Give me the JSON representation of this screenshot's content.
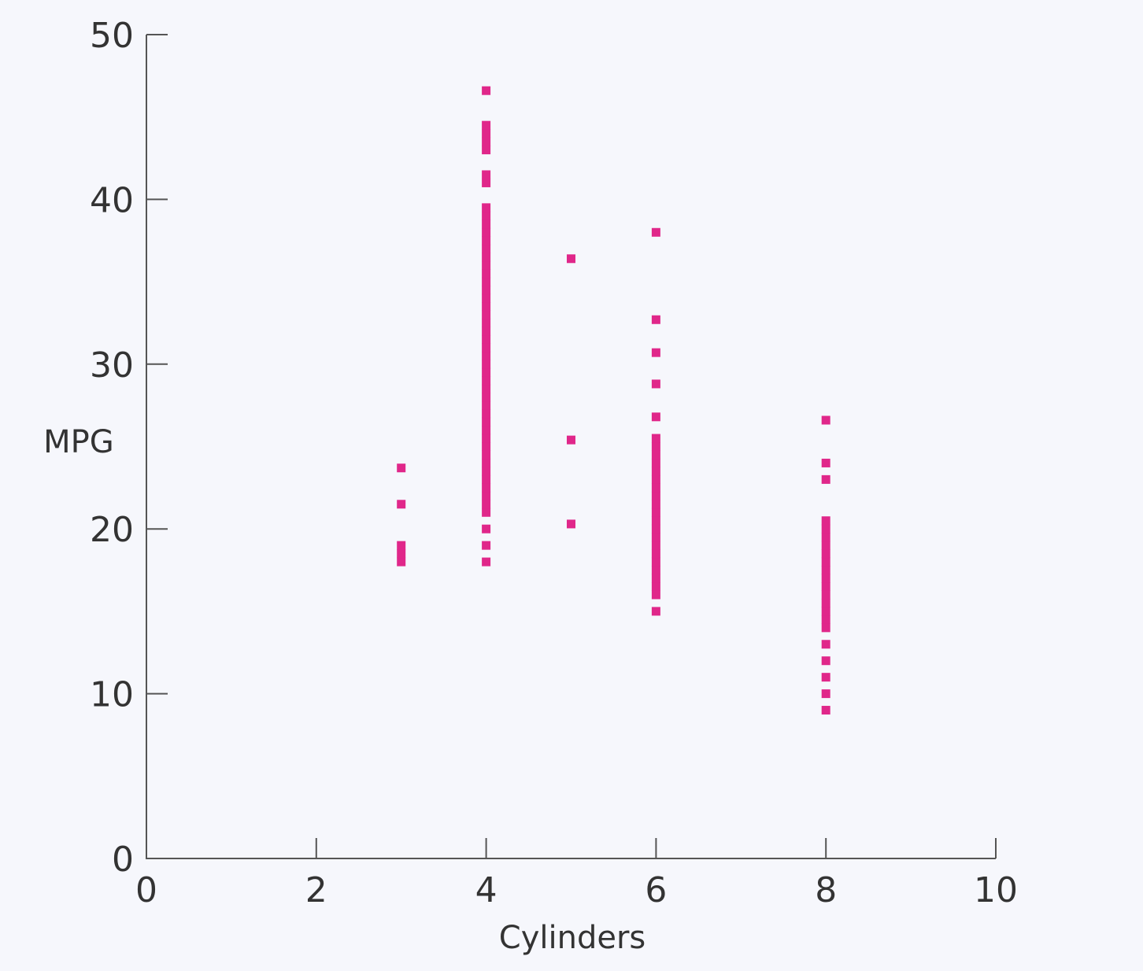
{
  "chart_data": {
    "type": "scatter",
    "title": "",
    "xlabel": "Cylinders",
    "ylabel": "MPG",
    "xlim": [
      0,
      10
    ],
    "ylim": [
      0,
      50
    ],
    "xticks": [
      "0",
      "2",
      "4",
      "6",
      "8",
      "10"
    ],
    "yticks": [
      "0",
      "10",
      "20",
      "30",
      "40",
      "50"
    ],
    "grid": false,
    "marker_color": "#e0278a",
    "series": [
      {
        "x_value": 3,
        "values": [
          18,
          18.5,
          19,
          21.5,
          23.7
        ]
      },
      {
        "x_value": 4,
        "values": [
          18,
          19,
          20,
          21,
          21.5,
          22,
          22.5,
          23,
          23.5,
          24,
          24.5,
          25,
          25.5,
          26,
          26.5,
          27,
          27.5,
          28,
          28.5,
          29,
          29.5,
          30,
          30.5,
          31,
          31.5,
          32,
          32.5,
          33,
          33.5,
          34,
          34.5,
          35,
          35.5,
          36,
          36.5,
          37,
          37.5,
          38,
          38.5,
          39,
          39.5,
          41,
          41.5,
          43,
          43.5,
          44,
          44.5,
          46.6
        ]
      },
      {
        "x_value": 5,
        "values": [
          20.3,
          25.4,
          36.4
        ]
      },
      {
        "x_value": 6,
        "values": [
          15,
          16,
          16.5,
          17,
          17.5,
          18,
          18.5,
          19,
          19.5,
          20,
          20.5,
          21,
          21.5,
          22,
          22.5,
          23,
          23.5,
          24,
          24.5,
          25,
          25.5,
          26.8,
          28.8,
          30.7,
          32.7,
          38
        ]
      },
      {
        "x_value": 8,
        "values": [
          9,
          10,
          11,
          12,
          13,
          14,
          14.5,
          15,
          15.5,
          16,
          16.5,
          17,
          17.5,
          18,
          18.5,
          19,
          19.5,
          20,
          20.5,
          23,
          24,
          26.6
        ]
      }
    ]
  }
}
